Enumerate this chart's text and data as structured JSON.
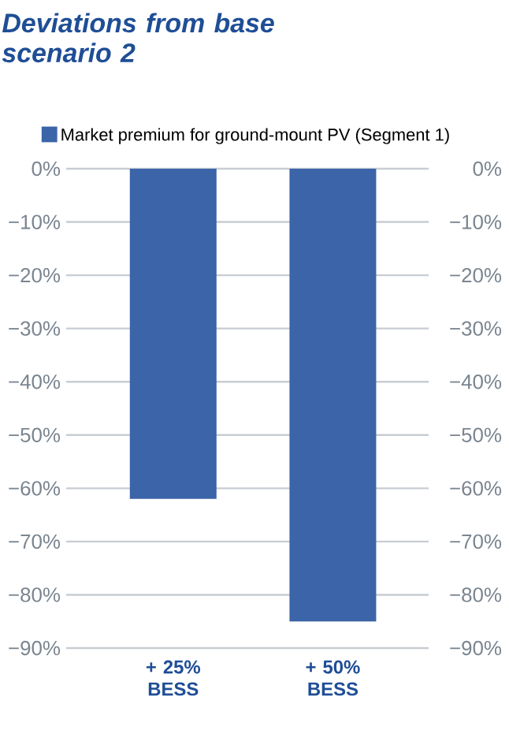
{
  "chart_data": {
    "type": "bar",
    "title": "Deviations from base scenario 2",
    "categories": [
      "+ 25% BESS",
      "+ 50% BESS"
    ],
    "series": [
      {
        "name": "Market premium for ground-mount PV (Segment 1)",
        "color": "#3c64a8",
        "values": [
          -62,
          -85
        ]
      }
    ],
    "ylim": [
      -90,
      0
    ],
    "yticks": [
      {
        "value": 0,
        "label": "0%"
      },
      {
        "value": -10,
        "label": "−10%"
      },
      {
        "value": -20,
        "label": "−20%"
      },
      {
        "value": -30,
        "label": "−30%"
      },
      {
        "value": -40,
        "label": "−40%"
      },
      {
        "value": -50,
        "label": "−50%"
      },
      {
        "value": -60,
        "label": "−60%"
      },
      {
        "value": -70,
        "label": "−70%"
      },
      {
        "value": -80,
        "label": "−80%"
      },
      {
        "value": -90,
        "label": "−90%"
      }
    ],
    "y2lim": [
      -90,
      0
    ],
    "y2ticks": [
      {
        "value": 0,
        "label": "0%"
      },
      {
        "value": -10,
        "label": "−10%"
      },
      {
        "value": -20,
        "label": "−20%"
      },
      {
        "value": -30,
        "label": "−30%"
      },
      {
        "value": -40,
        "label": "−40%"
      },
      {
        "value": -50,
        "label": "−50%"
      },
      {
        "value": -60,
        "label": "−60%"
      },
      {
        "value": -70,
        "label": "−70%"
      },
      {
        "value": -80,
        "label": "−80%"
      },
      {
        "value": -90,
        "label": "−90%"
      }
    ],
    "grid": "y",
    "legend": "top"
  }
}
